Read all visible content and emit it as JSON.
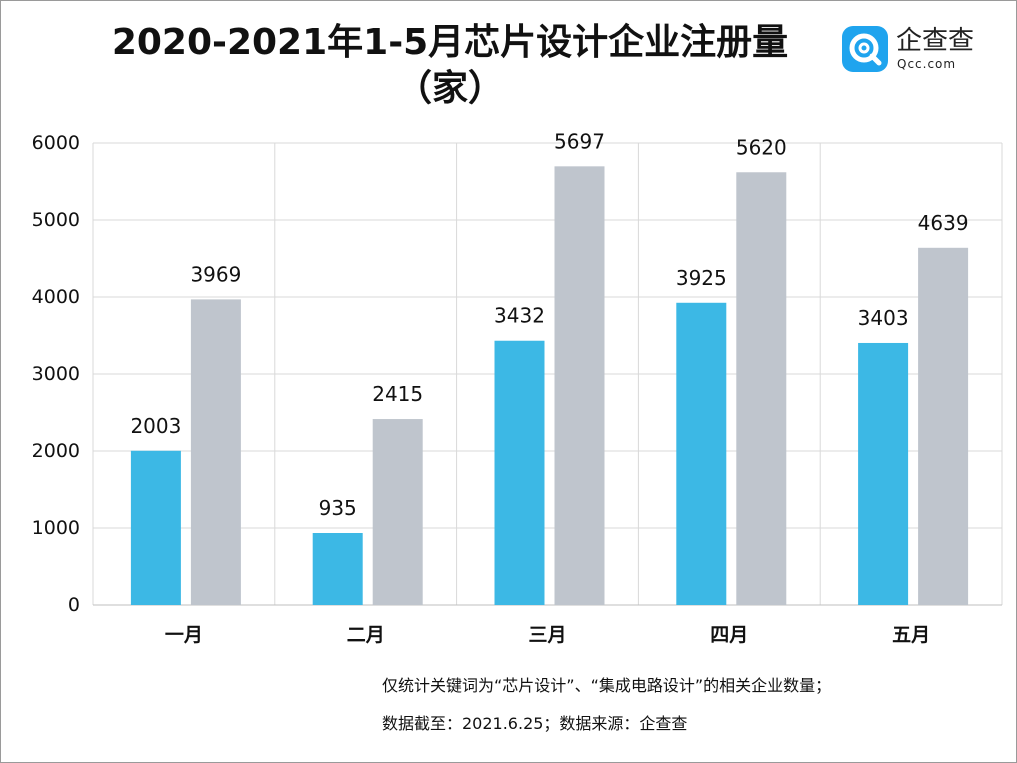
{
  "header": {
    "title_line1": "2020-2021年1-5月芯片设计企业注册量",
    "title_line2": "（家）"
  },
  "logo": {
    "icon": "qcc-magnifier-icon",
    "name": "企查查",
    "domain": "Qcc.com",
    "color": "#1fa4ee"
  },
  "chart_data": {
    "type": "bar",
    "title": "2020-2021年1-5月芯片设计企业注册量（家）",
    "categories": [
      "一月",
      "二月",
      "三月",
      "四月",
      "五月"
    ],
    "series": [
      {
        "color": "#3cb8e5",
        "values": [
          2003,
          935,
          3432,
          3925,
          3403
        ]
      },
      {
        "color": "#bfc5cd",
        "values": [
          3969,
          2415,
          5697,
          5620,
          4639
        ]
      }
    ],
    "ylim": [
      0,
      6000
    ],
    "yticks": [
      0,
      1000,
      2000,
      3000,
      4000,
      5000,
      6000
    ],
    "xlabel": "",
    "ylabel": "",
    "grid": true,
    "legend": "none"
  },
  "notes": {
    "line1": "仅统计关键词为“芯片设计”、“集成电路设计”的相关企业数量；",
    "line2": "数据截至：2021.6.25；数据来源：企查查"
  }
}
